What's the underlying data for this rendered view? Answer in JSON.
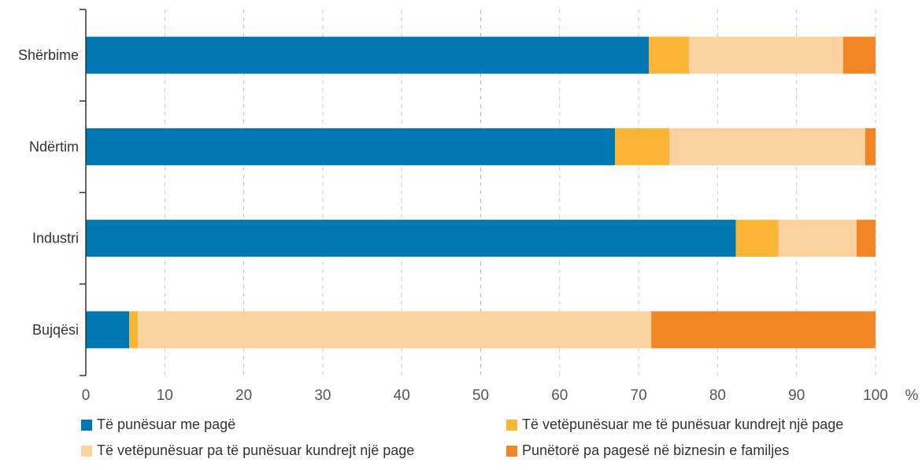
{
  "chart_data": {
    "type": "bar",
    "orientation": "horizontal",
    "stacked": true,
    "categories": [
      "Shërbime",
      "Ndërtim",
      "Industri",
      "Bujqësi"
    ],
    "series": [
      {
        "name": "Të punësuar me pagë",
        "color": "#0077B0",
        "values": [
          71.3,
          67.0,
          82.3,
          5.5
        ]
      },
      {
        "name": "Të vetëpunësuar me të punësuar kundrejt një page",
        "color": "#FBB536",
        "values": [
          5.1,
          6.9,
          5.4,
          1.1
        ]
      },
      {
        "name": "Të vetëpunësuar pa të punësuar kundrejt një page",
        "color": "#FDD2A1",
        "values": [
          19.5,
          24.8,
          9.9,
          65.0
        ]
      },
      {
        "name": "Punëtorë pa pagesë në biznesin e familjes",
        "color": "#F28627",
        "values": [
          4.1,
          1.3,
          2.4,
          28.4
        ]
      }
    ],
    "xlim": [
      0,
      100
    ],
    "xticks": [
      "0",
      "10",
      "20",
      "30",
      "40",
      "50",
      "60",
      "70",
      "80",
      "90",
      "100"
    ],
    "xunit": "%",
    "grid": "vertical dashed",
    "legend_position": "bottom"
  }
}
